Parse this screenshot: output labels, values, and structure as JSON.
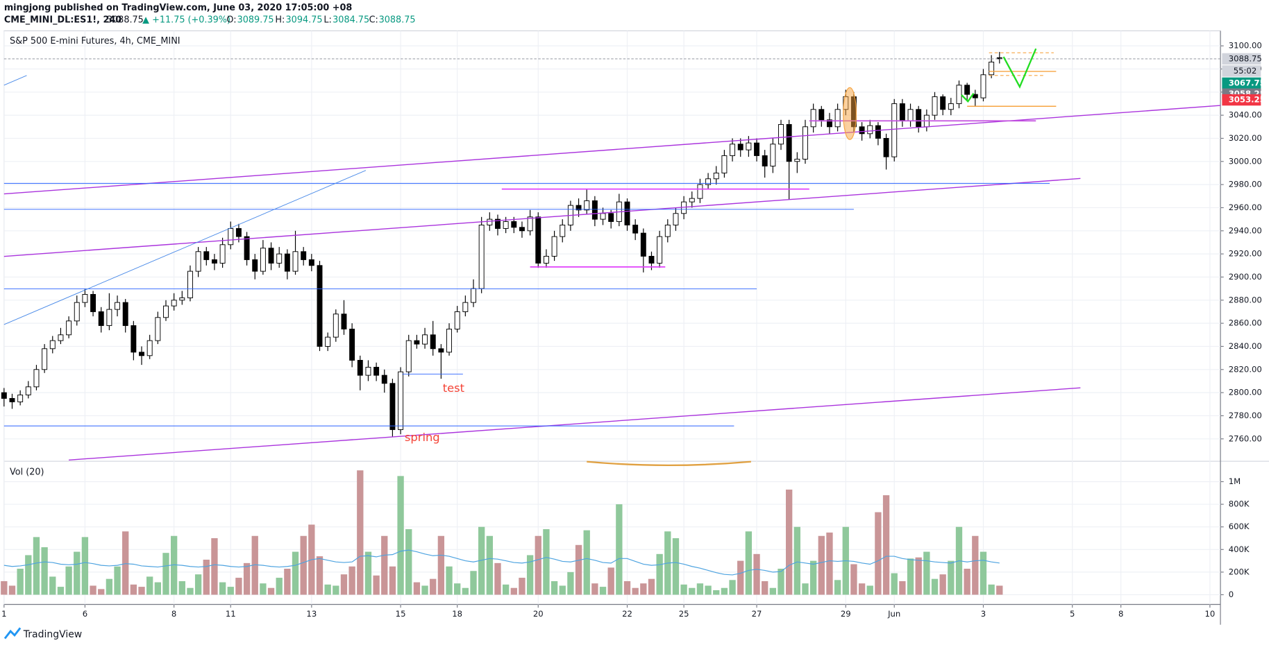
{
  "header": {
    "author_line": "mingjong published on TradingView.com, June 03, 2020 17:05:00 +08",
    "symbol": "CME_MINI_DL:ES1!, 240",
    "change": "▲ +11.75 (+0.39%)",
    "o_label": "O:",
    "h_label": "H:",
    "l_label": "L:",
    "c_label": "C:"
  },
  "footer": {
    "brand": "TradingView"
  },
  "chart_data": {
    "type": "candlestick",
    "title": "S&P 500 E-mini Futures, 4h, CME_MINI",
    "categories": [
      "1",
      null,
      null,
      null,
      null,
      null,
      null,
      null,
      null,
      null,
      "6",
      null,
      null,
      null,
      null,
      null,
      null,
      null,
      null,
      null,
      null,
      "8",
      null,
      null,
      null,
      null,
      null,
      null,
      "11",
      null,
      null,
      null,
      null,
      null,
      null,
      null,
      null,
      null,
      "13",
      null,
      null,
      null,
      null,
      null,
      null,
      null,
      null,
      null,
      null,
      "15",
      null,
      null,
      null,
      null,
      null,
      null,
      "18",
      null,
      null,
      null,
      null,
      null,
      null,
      null,
      null,
      null,
      "20",
      null,
      null,
      null,
      null,
      null,
      null,
      null,
      null,
      null,
      null,
      "22",
      null,
      null,
      null,
      null,
      null,
      null,
      "25",
      null,
      null,
      null,
      null,
      null,
      null,
      null,
      null,
      "27",
      null,
      null,
      null,
      null,
      null,
      null,
      null,
      null,
      null,
      null,
      "29",
      null,
      null,
      null,
      null,
      null,
      "Jun",
      null,
      null,
      null,
      null,
      null,
      null,
      null,
      null,
      null,
      null,
      "3",
      null,
      null,
      null,
      null,
      null,
      null,
      null,
      null,
      null,
      null,
      "5",
      null,
      null,
      null,
      null,
      null,
      "8",
      null,
      null,
      null,
      null,
      null,
      null,
      null,
      null,
      null,
      null,
      "10"
    ],
    "open": [
      2800,
      2795,
      2792,
      2798,
      2805,
      2820,
      2838,
      2845,
      2850,
      2862,
      2878,
      2885,
      2870,
      2858,
      2872,
      2878,
      2858,
      2835,
      2832,
      2845,
      2865,
      2875,
      2880,
      2882,
      2905,
      2922,
      2915,
      2912,
      2928,
      2942,
      2935,
      2915,
      2905,
      2925,
      2912,
      2920,
      2905,
      2922,
      2915,
      2910,
      2840,
      2848,
      2868,
      2855,
      2828,
      2815,
      2822,
      2815,
      2808,
      2768,
      2818,
      2845,
      2842,
      2850,
      2838,
      2835,
      2855,
      2870,
      2878,
      2890,
      2945,
      2950,
      2942,
      2948,
      2943,
      2940,
      2952,
      2912,
      2918,
      2935,
      2945,
      2962,
      2958,
      2966,
      2950,
      2955,
      2948,
      2965,
      2945,
      2938,
      2918,
      2912,
      2935,
      2945,
      2955,
      2965,
      2968,
      2980,
      2985,
      2990,
      3005,
      3015,
      3010,
      3016,
      3005,
      2996,
      3015,
      3032,
      3000,
      3002,
      3030,
      3045,
      3036,
      3030,
      3045,
      3056,
      3030,
      3024,
      3031,
      3020,
      3004,
      3050,
      3035,
      3045,
      3030,
      3040,
      3056,
      3045,
      3050,
      3066,
      3058,
      3055,
      3075,
      3089.75,
      null,
      null,
      null,
      null,
      null,
      null,
      null,
      null,
      null,
      null,
      null,
      null,
      null,
      null,
      null,
      null,
      null,
      null,
      null,
      null,
      null,
      null,
      null,
      null,
      null,
      null
    ],
    "high": [
      2804,
      2799,
      2802,
      2810,
      2824,
      2842,
      2849,
      2856,
      2866,
      2884,
      2890,
      2888,
      2874,
      2886,
      2884,
      2881,
      2862,
      2840,
      2850,
      2870,
      2880,
      2886,
      2888,
      2910,
      2926,
      2926,
      2920,
      2934,
      2948,
      2946,
      2939,
      2920,
      2932,
      2930,
      2926,
      2924,
      2940,
      2926,
      2920,
      2914,
      2852,
      2872,
      2880,
      2860,
      2832,
      2828,
      2826,
      2820,
      2812,
      2822,
      2850,
      2850,
      2856,
      2862,
      2842,
      2860,
      2875,
      2884,
      2898,
      2952,
      2956,
      2954,
      2952,
      2952,
      2948,
      2958,
      2956,
      2924,
      2940,
      2950,
      2966,
      2968,
      2976,
      2970,
      2960,
      2958,
      2972,
      2968,
      2950,
      2942,
      2922,
      2940,
      2950,
      2960,
      2970,
      2974,
      2985,
      2990,
      2996,
      3010,
      3020,
      3020,
      3022,
      3020,
      3010,
      3020,
      3036,
      3036,
      3008,
      3036,
      3050,
      3048,
      3042,
      3050,
      3062,
      3060,
      3034,
      3036,
      3034,
      3024,
      3054,
      3054,
      3050,
      3048,
      3045,
      3060,
      3058,
      3055,
      3070,
      3068,
      3062,
      3080,
      3092,
      3094.75,
      null,
      null,
      null,
      null,
      null,
      null,
      null,
      null,
      null,
      null,
      null,
      null,
      null,
      null,
      null,
      null,
      null,
      null,
      null,
      null,
      null,
      null,
      null,
      null,
      null,
      null
    ],
    "low": [
      2788,
      2786,
      2789,
      2795,
      2802,
      2817,
      2834,
      2842,
      2847,
      2858,
      2874,
      2866,
      2852,
      2854,
      2866,
      2852,
      2828,
      2824,
      2829,
      2842,
      2862,
      2871,
      2876,
      2879,
      2900,
      2910,
      2906,
      2908,
      2924,
      2930,
      2910,
      2898,
      2902,
      2906,
      2908,
      2898,
      2902,
      2910,
      2905,
      2836,
      2836,
      2844,
      2850,
      2822,
      2802,
      2810,
      2810,
      2800,
      2762,
      2764,
      2814,
      2838,
      2838,
      2832,
      2812,
      2832,
      2852,
      2866,
      2874,
      2886,
      2940,
      2936,
      2938,
      2938,
      2934,
      2936,
      2908,
      2908,
      2914,
      2930,
      2940,
      2952,
      2954,
      2944,
      2945,
      2942,
      2944,
      2940,
      2932,
      2904,
      2906,
      2908,
      2930,
      2940,
      2950,
      2960,
      2964,
      2976,
      2980,
      2986,
      3000,
      3004,
      3004,
      3000,
      2986,
      2990,
      3010,
      2967,
      2990,
      2998,
      3025,
      3030,
      3024,
      3026,
      3040,
      3025,
      3018,
      3020,
      3014,
      2993,
      3000,
      3030,
      3030,
      3025,
      3026,
      3036,
      3040,
      3040,
      3046,
      3052,
      3048,
      3052,
      3072,
      3084.75,
      null,
      null,
      null,
      null,
      null,
      null,
      null,
      null,
      null,
      null,
      null,
      null,
      null,
      null,
      null,
      null,
      null,
      null,
      null,
      null,
      null,
      null,
      null,
      null,
      null,
      null
    ],
    "close": [
      2795,
      2792,
      2798,
      2805,
      2820,
      2838,
      2845,
      2850,
      2862,
      2878,
      2885,
      2870,
      2858,
      2872,
      2878,
      2858,
      2835,
      2832,
      2845,
      2865,
      2875,
      2880,
      2882,
      2905,
      2922,
      2915,
      2912,
      2928,
      2942,
      2935,
      2915,
      2905,
      2925,
      2912,
      2920,
      2905,
      2922,
      2915,
      2910,
      2840,
      2848,
      2868,
      2855,
      2828,
      2815,
      2822,
      2815,
      2808,
      2768,
      2818,
      2845,
      2842,
      2850,
      2838,
      2835,
      2855,
      2870,
      2878,
      2890,
      2945,
      2950,
      2942,
      2948,
      2943,
      2940,
      2952,
      2912,
      2918,
      2935,
      2945,
      2962,
      2958,
      2966,
      2950,
      2955,
      2948,
      2965,
      2945,
      2938,
      2918,
      2912,
      2935,
      2945,
      2955,
      2965,
      2968,
      2980,
      2985,
      2990,
      3005,
      3015,
      3010,
      3016,
      3005,
      2996,
      3015,
      3032,
      3000,
      3002,
      3030,
      3045,
      3036,
      3030,
      3045,
      3056,
      3030,
      3024,
      3031,
      3020,
      3004,
      3050,
      3035,
      3045,
      3030,
      3040,
      3056,
      3045,
      3050,
      3066,
      3058,
      3055,
      3075,
      3086,
      3088.75,
      null,
      null,
      null,
      null,
      null,
      null,
      null,
      null,
      null,
      null,
      null,
      null,
      null,
      null,
      null,
      null,
      null,
      null,
      null,
      null,
      null,
      null,
      null,
      null,
      null,
      null
    ],
    "ylim": [
      2741,
      3113
    ],
    "yticks": [
      {
        "value": 2760,
        "label": "2760.00"
      },
      {
        "value": 2780,
        "label": "2780.00"
      },
      {
        "value": 2800,
        "label": "2800.00"
      },
      {
        "value": 2820,
        "label": "2820.00"
      },
      {
        "value": 2840,
        "label": "2840.00"
      },
      {
        "value": 2860,
        "label": "2860.00"
      },
      {
        "value": 2880,
        "label": "2880.00"
      },
      {
        "value": 2900,
        "label": "2900.00"
      },
      {
        "value": 2920,
        "label": "2920.00"
      },
      {
        "value": 2940,
        "label": "2940.00"
      },
      {
        "value": 2960,
        "label": "2960.00"
      },
      {
        "value": 2980,
        "label": "2980.00"
      },
      {
        "value": 3000,
        "label": "3000.00"
      },
      {
        "value": 3020,
        "label": "3020.00"
      },
      {
        "value": 3040,
        "label": "3040.00"
      },
      {
        "value": 3060,
        "label": "3060.00"
      },
      {
        "value": 3080,
        "label": "3080.00"
      },
      {
        "value": 3100,
        "label": "3100.00"
      }
    ],
    "grid": true,
    "countdown": "55:02",
    "price_markers": [
      {
        "value": 3067.75,
        "color": "#089981"
      },
      {
        "value": 3058.25,
        "color": "#787b86"
      },
      {
        "value": 3053.25,
        "color": "#f23645"
      }
    ],
    "annotations": [
      {
        "text": "test",
        "color": "#f44336"
      },
      {
        "text": "spring",
        "color": "#f44336"
      }
    ],
    "colors": {
      "candle_up": "#ffffff",
      "candle_down": "#000000",
      "volume_up": "#8fc89b",
      "volume_down": "#c99597",
      "volume_ma": "#4da3e0",
      "last_price": "#d1d4dc"
    },
    "volume": {
      "title": "Vol (20)",
      "values": [
        120000,
        80000,
        230000,
        350000,
        510000,
        420000,
        160000,
        70000,
        250000,
        380000,
        510000,
        80000,
        50000,
        140000,
        250000,
        560000,
        90000,
        70000,
        160000,
        110000,
        370000,
        520000,
        120000,
        60000,
        180000,
        310000,
        500000,
        110000,
        70000,
        150000,
        280000,
        520000,
        100000,
        60000,
        150000,
        230000,
        380000,
        520000,
        620000,
        340000,
        90000,
        80000,
        180000,
        250000,
        1100000,
        380000,
        170000,
        520000,
        250000,
        1050000,
        580000,
        110000,
        80000,
        140000,
        520000,
        250000,
        100000,
        60000,
        210000,
        600000,
        520000,
        280000,
        90000,
        60000,
        150000,
        350000,
        520000,
        580000,
        120000,
        80000,
        200000,
        440000,
        570000,
        100000,
        70000,
        240000,
        800000,
        120000,
        60000,
        100000,
        140000,
        360000,
        560000,
        500000,
        90000,
        60000,
        100000,
        80000,
        40000,
        60000,
        130000,
        300000,
        560000,
        360000,
        120000,
        60000,
        230000,
        930000,
        600000,
        100000,
        300000,
        520000,
        550000,
        130000,
        600000,
        270000,
        100000,
        80000,
        730000,
        880000,
        190000,
        120000,
        320000,
        330000,
        380000,
        140000,
        180000,
        300000,
        600000,
        230000,
        520000,
        380000,
        90000,
        80000,
        null,
        null,
        null,
        null,
        null,
        null,
        null,
        null,
        null,
        null,
        null,
        null,
        null,
        null,
        null,
        null,
        null,
        null,
        null,
        null,
        null,
        null,
        null,
        null,
        null,
        null
      ],
      "ma": [
        260000,
        250000,
        255000,
        265000,
        280000,
        290000,
        285000,
        270000,
        265000,
        270000,
        285000,
        275000,
        260000,
        255000,
        260000,
        275000,
        270000,
        255000,
        250000,
        245000,
        255000,
        265000,
        260000,
        250000,
        245000,
        250000,
        265000,
        260000,
        250000,
        245000,
        250000,
        265000,
        260000,
        250000,
        245000,
        250000,
        260000,
        285000,
        310000,
        320000,
        305000,
        290000,
        285000,
        290000,
        340000,
        345000,
        335000,
        350000,
        355000,
        385000,
        395000,
        380000,
        360000,
        345000,
        350000,
        340000,
        320000,
        300000,
        290000,
        305000,
        320000,
        315000,
        300000,
        285000,
        280000,
        290000,
        310000,
        330000,
        315000,
        295000,
        290000,
        305000,
        320000,
        305000,
        285000,
        280000,
        320000,
        320000,
        295000,
        270000,
        260000,
        265000,
        280000,
        285000,
        270000,
        250000,
        235000,
        215000,
        195000,
        180000,
        175000,
        190000,
        215000,
        225000,
        215000,
        200000,
        205000,
        260000,
        290000,
        280000,
        270000,
        285000,
        300000,
        295000,
        300000,
        295000,
        280000,
        270000,
        300000,
        340000,
        340000,
        320000,
        310000,
        305000,
        300000,
        290000,
        285000,
        280000,
        300000,
        290000,
        300000,
        305000,
        290000,
        280000,
        null,
        null,
        null,
        null,
        null,
        null,
        null,
        null,
        null,
        null,
        null,
        null,
        null,
        null,
        null,
        null,
        null,
        null,
        null,
        null,
        null,
        null,
        null,
        null,
        null,
        null
      ],
      "ylim": [
        -86000,
        1170000
      ],
      "yticks": [
        0,
        {
          "value": 200000,
          "label": "200K"
        },
        {
          "value": 400000,
          "label": "400K"
        },
        {
          "value": 600000,
          "label": "600K"
        },
        {
          "value": 800000,
          "label": "800K"
        },
        {
          "value": 1000000,
          "label": "1M"
        }
      ]
    }
  }
}
